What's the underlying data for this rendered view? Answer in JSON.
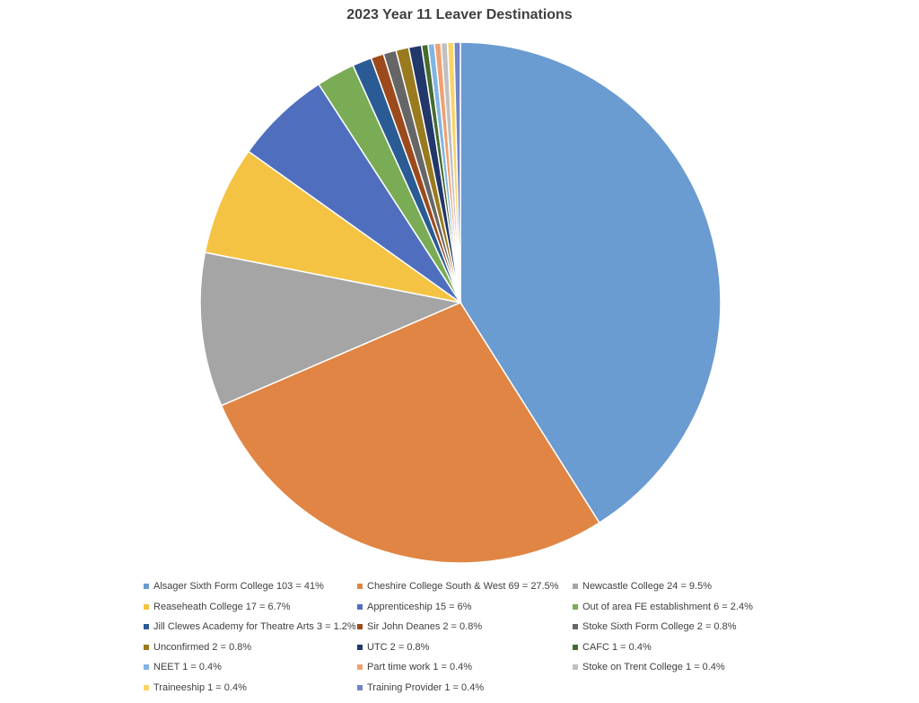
{
  "chart_data": {
    "type": "pie",
    "title": "2023 Year 11 Leaver Destinations",
    "slices": [
      {
        "label": "Alsager Sixth Form College 103 = 41%",
        "value": 103,
        "color": "#6a9bd1"
      },
      {
        "label": "Cheshire College South & West 69 = 27.5%",
        "value": 69,
        "color": "#e08543"
      },
      {
        "label": "Newcastle College 24 = 9.5%",
        "value": 24,
        "color": "#a5a5a5"
      },
      {
        "label": "Reaseheath College 17 = 6.7%",
        "value": 17,
        "color": "#f5c343"
      },
      {
        "label": "Apprenticeship 15 = 6%",
        "value": 15,
        "color": "#4f6fbe"
      },
      {
        "label": "Out of area FE establishment 6 = 2.4%",
        "value": 6,
        "color": "#7aac55"
      },
      {
        "label": "Jill Clewes Academy for Theatre Arts 3 = 1.2%",
        "value": 3,
        "color": "#2a5b94"
      },
      {
        "label": "Sir John Deanes 2 = 0.8%",
        "value": 2,
        "color": "#9c4a1c"
      },
      {
        "label": "Stoke Sixth Form College 2 = 0.8%",
        "value": 2,
        "color": "#666666"
      },
      {
        "label": "Unconfirmed 2 = 0.8%",
        "value": 2,
        "color": "#9a7a1e"
      },
      {
        "label": "UTC 2 = 0.8%",
        "value": 2,
        "color": "#22386a"
      },
      {
        "label": "CAFC 1 = 0.4%",
        "value": 1,
        "color": "#466b2f"
      },
      {
        "label": "NEET 1 = 0.4%",
        "value": 1,
        "color": "#80b4e2"
      },
      {
        "label": "Part time work 1 = 0.4%",
        "value": 1,
        "color": "#f0a070"
      },
      {
        "label": "Stoke on Trent College 1 = 0.4%",
        "value": 1,
        "color": "#c0c0c0"
      },
      {
        "label": "Traineeship 1 = 0.4%",
        "value": 1,
        "color": "#f8d468"
      },
      {
        "label": "Training Provider 1 = 0.4%",
        "value": 1,
        "color": "#7186c8"
      }
    ],
    "legend_position": "bottom"
  }
}
